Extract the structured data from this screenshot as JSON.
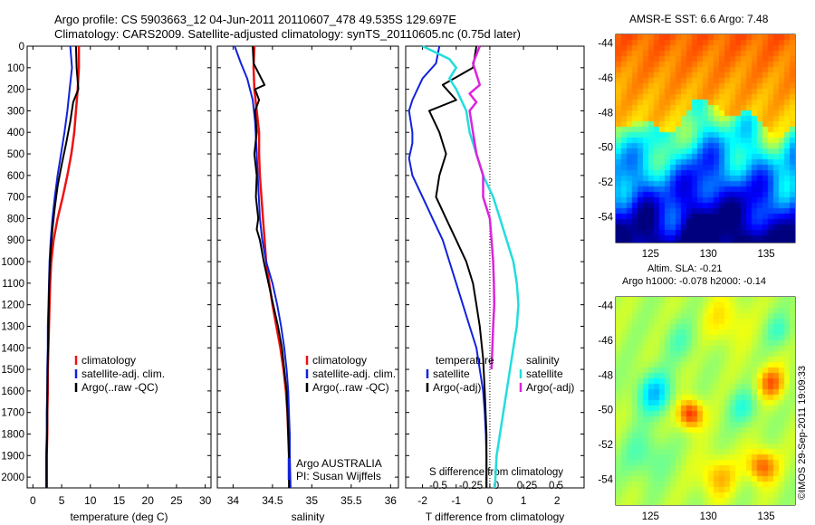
{
  "title": {
    "line1": "Argo profile: CS 5903663_12 04-Jun-2011 20110607_478 49.535S 129.697E",
    "line2": "Climatology: CARS2009. Satellite-adjusted climatology: synTS_20110605.nc (0.75d later)"
  },
  "credit": "©IMOS 29-Sep-2011 19:09:33",
  "colors": {
    "climatology": "#ee1111",
    "satellite": "#1122dd",
    "argo": "#000000",
    "sat_salinity": "#22dddd",
    "argo_salinity_adj": "#dd22dd"
  },
  "chart_data": [
    {
      "type": "line",
      "id": "temperature",
      "xlabel": "temperature (deg C)",
      "xlim": [
        -1,
        31
      ],
      "xticks": [
        "0",
        "5",
        "10",
        "15",
        "20",
        "25",
        "30"
      ],
      "ylim": [
        2050,
        0
      ],
      "yticks": [
        "0",
        "100",
        "200",
        "300",
        "400",
        "500",
        "600",
        "700",
        "800",
        "900",
        "1000",
        "1100",
        "1200",
        "1300",
        "1400",
        "1500",
        "1600",
        "1700",
        "1800",
        "1900",
        "2000"
      ],
      "legend": [
        "climatology",
        "satellite-adj. clim.",
        "Argo(..raw -QC)"
      ],
      "series": [
        {
          "name": "climatology",
          "color": "#ee1111",
          "width": 2.5,
          "points": [
            [
              8.0,
              0
            ],
            [
              8.0,
              100
            ],
            [
              7.8,
              200
            ],
            [
              7.5,
              300
            ],
            [
              7.2,
              400
            ],
            [
              6.7,
              500
            ],
            [
              6.0,
              600
            ],
            [
              5.2,
              700
            ],
            [
              4.3,
              800
            ],
            [
              3.6,
              900
            ],
            [
              3.2,
              1000
            ],
            [
              3.0,
              1100
            ],
            [
              2.9,
              1200
            ],
            [
              2.8,
              1300
            ],
            [
              2.7,
              1400
            ],
            [
              2.6,
              1500
            ],
            [
              2.6,
              1600
            ],
            [
              2.5,
              1700
            ],
            [
              2.5,
              1800
            ],
            [
              2.4,
              1900
            ],
            [
              2.4,
              2050
            ]
          ]
        },
        {
          "name": "satellite-adj. clim.",
          "color": "#1122dd",
          "width": 2,
          "points": [
            [
              6.5,
              0
            ],
            [
              6.8,
              100
            ],
            [
              6.4,
              200
            ],
            [
              6.0,
              300
            ],
            [
              5.5,
              400
            ],
            [
              4.9,
              500
            ],
            [
              4.3,
              600
            ],
            [
              3.8,
              700
            ],
            [
              3.4,
              800
            ],
            [
              3.1,
              900
            ],
            [
              2.9,
              1000
            ],
            [
              2.8,
              1100
            ],
            [
              2.7,
              1200
            ],
            [
              2.6,
              1300
            ],
            [
              2.6,
              1400
            ],
            [
              2.5,
              1500
            ],
            [
              2.5,
              1600
            ],
            [
              2.4,
              1700
            ],
            [
              2.4,
              1800
            ],
            [
              2.3,
              1900
            ],
            [
              2.3,
              2050
            ]
          ]
        },
        {
          "name": "Argo(..raw -QC)",
          "color": "#000000",
          "width": 2,
          "points": [
            [
              7.5,
              0
            ],
            [
              7.6,
              100
            ],
            [
              7.9,
              200
            ],
            [
              7.0,
              260
            ],
            [
              6.5,
              350
            ],
            [
              5.8,
              450
            ],
            [
              5.0,
              550
            ],
            [
              4.3,
              650
            ],
            [
              3.8,
              750
            ],
            [
              3.4,
              850
            ],
            [
              3.1,
              950
            ],
            [
              2.9,
              1050
            ],
            [
              2.8,
              1150
            ],
            [
              2.7,
              1300
            ],
            [
              2.6,
              1450
            ],
            [
              2.5,
              1600
            ],
            [
              2.5,
              1750
            ],
            [
              2.4,
              1900
            ],
            [
              2.4,
              2050
            ]
          ]
        }
      ]
    },
    {
      "type": "line",
      "id": "salinity",
      "xlabel": "salinity",
      "xlim": [
        33.8,
        36.1
      ],
      "xticks": [
        "34",
        "34.5",
        "35",
        "35.5",
        "36"
      ],
      "ylim": [
        2050,
        0
      ],
      "legend": [
        "climatology",
        "satellite-adj. clim.",
        "Argo(..raw -QC)"
      ],
      "annotation": [
        "Argo AUSTRALIA",
        "PI: Susan Wijffels"
      ],
      "series": [
        {
          "name": "climatology",
          "color": "#ee1111",
          "width": 2.5,
          "points": [
            [
              34.27,
              0
            ],
            [
              34.26,
              100
            ],
            [
              34.27,
              200
            ],
            [
              34.3,
              300
            ],
            [
              34.33,
              400
            ],
            [
              34.33,
              500
            ],
            [
              34.34,
              600
            ],
            [
              34.36,
              700
            ],
            [
              34.38,
              800
            ],
            [
              34.4,
              900
            ],
            [
              34.42,
              1000
            ],
            [
              34.46,
              1100
            ],
            [
              34.5,
              1200
            ],
            [
              34.55,
              1300
            ],
            [
              34.6,
              1400
            ],
            [
              34.64,
              1500
            ],
            [
              34.67,
              1600
            ],
            [
              34.69,
              1700
            ],
            [
              34.7,
              1800
            ],
            [
              34.71,
              1900
            ],
            [
              34.72,
              2050
            ]
          ]
        },
        {
          "name": "satellite-adj. clim.",
          "color": "#1122dd",
          "width": 2,
          "points": [
            [
              34.02,
              0
            ],
            [
              34.1,
              80
            ],
            [
              34.18,
              150
            ],
            [
              34.25,
              250
            ],
            [
              34.28,
              350
            ],
            [
              34.3,
              500
            ],
            [
              34.32,
              650
            ],
            [
              34.34,
              800
            ],
            [
              34.37,
              900
            ],
            [
              34.42,
              1000
            ],
            [
              34.5,
              1100
            ],
            [
              34.56,
              1200
            ],
            [
              34.61,
              1300
            ],
            [
              34.65,
              1400
            ],
            [
              34.68,
              1500
            ],
            [
              34.7,
              1600
            ],
            [
              34.71,
              1700
            ],
            [
              34.72,
              1800
            ],
            [
              34.72,
              1900
            ],
            [
              34.73,
              2050
            ]
          ]
        },
        {
          "name": "Argo(..raw -QC)",
          "color": "#000000",
          "width": 2,
          "points": [
            [
              34.25,
              0
            ],
            [
              34.26,
              80
            ],
            [
              34.4,
              180
            ],
            [
              34.28,
              200
            ],
            [
              34.33,
              250
            ],
            [
              34.28,
              300
            ],
            [
              34.3,
              400
            ],
            [
              34.27,
              500
            ],
            [
              34.3,
              600
            ],
            [
              34.29,
              700
            ],
            [
              34.32,
              800
            ],
            [
              34.3,
              850
            ],
            [
              34.34,
              900
            ],
            [
              34.39,
              1000
            ],
            [
              34.45,
              1100
            ],
            [
              34.51,
              1200
            ],
            [
              34.57,
              1300
            ],
            [
              34.62,
              1400
            ],
            [
              34.65,
              1500
            ],
            [
              34.68,
              1600
            ],
            [
              34.69,
              1700
            ],
            [
              34.7,
              1800
            ],
            [
              34.71,
              1900
            ],
            [
              34.71,
              2050
            ]
          ]
        }
      ]
    },
    {
      "type": "line",
      "id": "difference",
      "xlabel": "T difference from climatology",
      "xlabel2": "S difference from climatology",
      "xlim": [
        -2.5,
        2.8
      ],
      "xticks": [
        "-2",
        "-1",
        "0",
        "1",
        "2"
      ],
      "xticks2": [
        "-0.5",
        "-0.25",
        "0",
        "0.25",
        "0.5"
      ],
      "ylim": [
        2050,
        0
      ],
      "legend_temperature": {
        "title": "temperature",
        "items": [
          "satellite",
          "Argo(-adj)"
        ]
      },
      "legend_salinity": {
        "title": "salinity",
        "items": [
          "satellite",
          "Argo(-adj)"
        ]
      },
      "series": [
        {
          "name": "satellite",
          "color": "#1122dd",
          "width": 2,
          "points": [
            [
              -1.5,
              0
            ],
            [
              -1.6,
              80
            ],
            [
              -2.0,
              150
            ],
            [
              -2.3,
              250
            ],
            [
              -2.4,
              300
            ],
            [
              -2.3,
              400
            ],
            [
              -2.3,
              450
            ],
            [
              -2.4,
              520
            ],
            [
              -2.3,
              600
            ],
            [
              -2.0,
              700
            ],
            [
              -1.7,
              800
            ],
            [
              -1.4,
              900
            ],
            [
              -1.2,
              1000
            ],
            [
              -1.0,
              1100
            ],
            [
              -0.8,
              1200
            ],
            [
              -0.6,
              1300
            ],
            [
              -0.4,
              1400
            ],
            [
              -0.3,
              1500
            ],
            [
              -0.2,
              1600
            ],
            [
              -0.15,
              1700
            ],
            [
              -0.12,
              1800
            ],
            [
              -0.1,
              1900
            ],
            [
              -0.1,
              2050
            ]
          ]
        },
        {
          "name": "Argo(-adj)",
          "color": "#000000",
          "width": 2,
          "points": [
            [
              -0.4,
              0
            ],
            [
              -0.5,
              100
            ],
            [
              -1.4,
              180
            ],
            [
              -1.0,
              250
            ],
            [
              -1.8,
              300
            ],
            [
              -1.5,
              400
            ],
            [
              -1.3,
              500
            ],
            [
              -1.5,
              600
            ],
            [
              -1.6,
              700
            ],
            [
              -1.3,
              800
            ],
            [
              -1.0,
              900
            ],
            [
              -0.7,
              1000
            ],
            [
              -0.5,
              1100
            ],
            [
              -0.4,
              1200
            ],
            [
              -0.3,
              1300
            ],
            [
              -0.2,
              1450
            ],
            [
              -0.15,
              1600
            ],
            [
              -0.1,
              1800
            ],
            [
              -0.1,
              2050
            ]
          ]
        },
        {
          "name": "satellite",
          "color": "#22dddd",
          "width": 2.5,
          "points": [
            [
              -2.0,
              0
            ],
            [
              -1.6,
              30
            ],
            [
              -1.2,
              60
            ],
            [
              -1.0,
              100
            ],
            [
              -1.2,
              150
            ],
            [
              -1.0,
              200
            ],
            [
              -0.7,
              300
            ],
            [
              -0.6,
              400
            ],
            [
              -0.4,
              500
            ],
            [
              -0.2,
              600
            ],
            [
              0.1,
              700
            ],
            [
              0.3,
              800
            ],
            [
              0.5,
              900
            ],
            [
              0.7,
              1000
            ],
            [
              0.8,
              1100
            ],
            [
              0.85,
              1200
            ],
            [
              0.8,
              1300
            ],
            [
              0.7,
              1400
            ],
            [
              0.6,
              1500
            ],
            [
              0.5,
              1600
            ],
            [
              0.4,
              1700
            ],
            [
              0.3,
              1800
            ],
            [
              0.2,
              1900
            ],
            [
              0.15,
              2050
            ]
          ]
        },
        {
          "name": "Argo(-adj)",
          "color": "#dd22dd",
          "width": 2.5,
          "points": [
            [
              -0.3,
              0
            ],
            [
              -0.5,
              80
            ],
            [
              -0.3,
              180
            ],
            [
              -0.6,
              220
            ],
            [
              -0.4,
              260
            ],
            [
              -0.6,
              300
            ],
            [
              -0.5,
              400
            ],
            [
              -0.4,
              500
            ],
            [
              -0.2,
              600
            ],
            [
              -0.2,
              700
            ],
            [
              0.0,
              800
            ],
            [
              0.05,
              900
            ],
            [
              0.1,
              1000
            ],
            [
              0.12,
              1100
            ],
            [
              0.13,
              1200
            ],
            [
              0.1,
              1300
            ],
            [
              0.05,
              1500
            ]
          ]
        }
      ]
    },
    {
      "type": "heatmap",
      "id": "sst",
      "title": "AMSR-E SST: 6.6 Argo: 7.48",
      "xlim": [
        122,
        137.5
      ],
      "ylim": [
        -55.5,
        -43.5
      ],
      "xticks": [
        "125",
        "130",
        "135"
      ],
      "yticks": [
        "-44",
        "-46",
        "-48",
        "-50",
        "-52",
        "-54"
      ],
      "marker": [
        129.7,
        -49.5
      ]
    },
    {
      "type": "heatmap",
      "id": "sla",
      "title_line1": "Altim. SLA: -0.21",
      "title_line2": "Argo h1000: -0.078 h2000: -0.14",
      "xlim": [
        122,
        137.5
      ],
      "ylim": [
        -55.5,
        -43.5
      ],
      "xticks": [
        "125",
        "130",
        "135"
      ],
      "yticks": [
        "-44",
        "-46",
        "-48",
        "-50",
        "-52",
        "-54"
      ],
      "marker": [
        129.7,
        -49.5
      ]
    }
  ]
}
